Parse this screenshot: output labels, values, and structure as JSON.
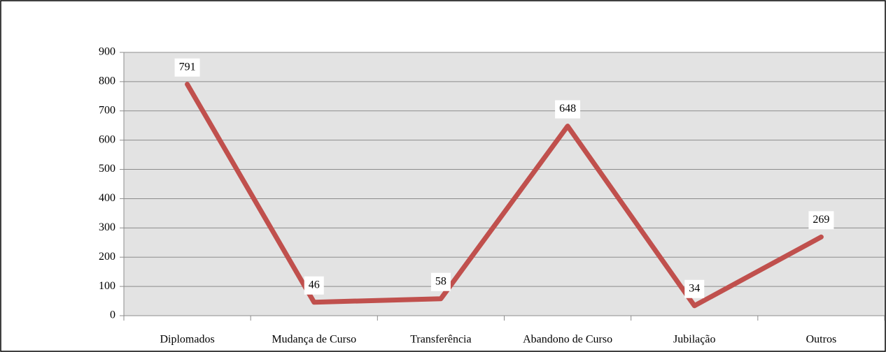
{
  "chart_data": {
    "type": "line",
    "categories": [
      "Diplomados",
      "Mudança de Curso",
      "Transferência",
      "Abandono de Curso",
      "Jubilação",
      "Outros"
    ],
    "series": [
      {
        "color": "#c0504d",
        "values": [
          791,
          46,
          58,
          648,
          34,
          269
        ]
      }
    ],
    "ylim": [
      0,
      900
    ],
    "yticks": [
      0,
      100,
      200,
      300,
      400,
      500,
      600,
      700,
      800,
      900
    ],
    "grid": true
  }
}
